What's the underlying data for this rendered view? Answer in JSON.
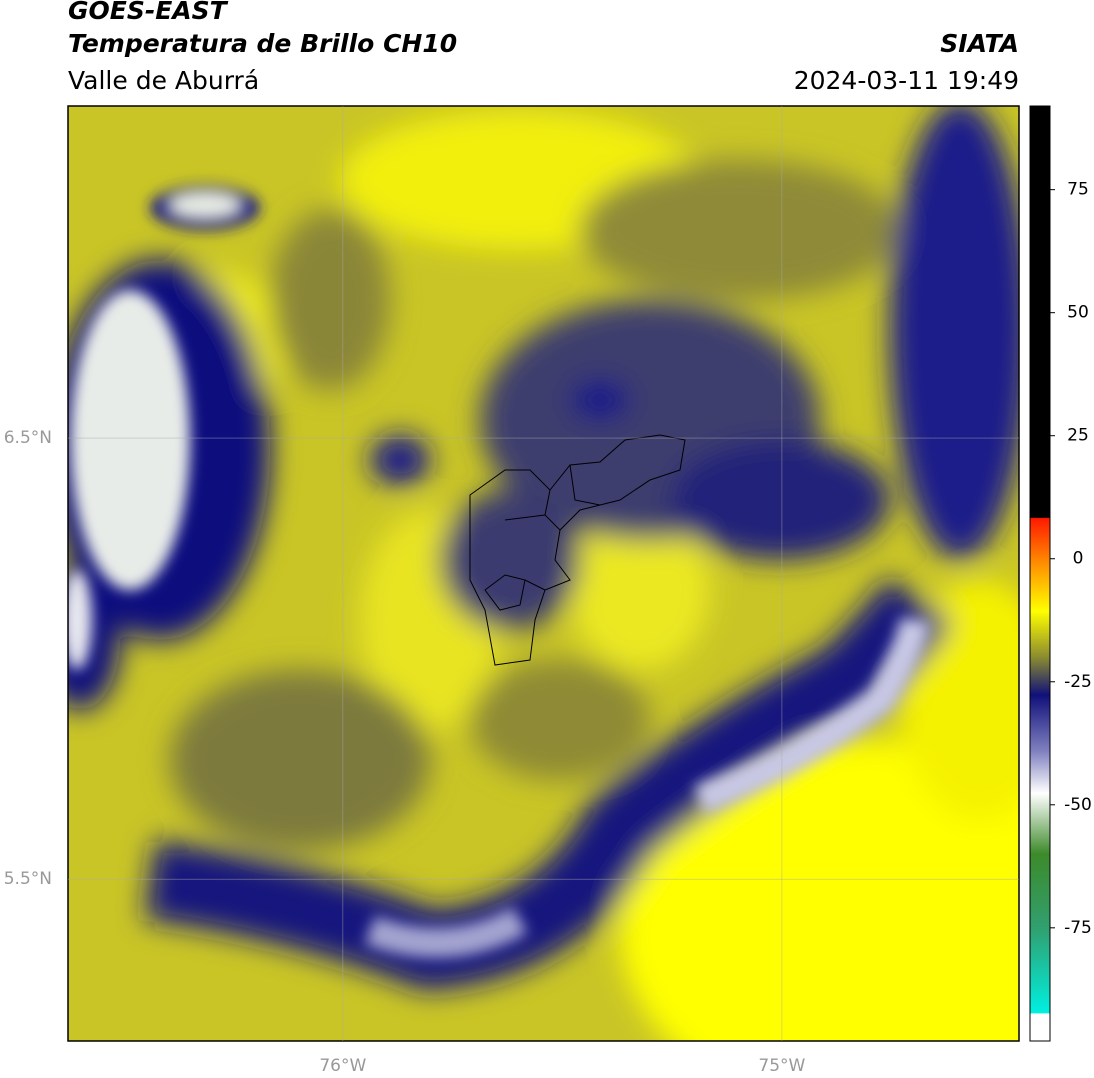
{
  "header": {
    "title": "GOES-EAST",
    "subtitle": "Temperatura de Brillo CH10",
    "region": "Valle de Aburrá",
    "source": "SIATA",
    "datetime": "2024-03-11 19:49"
  },
  "map": {
    "xlim": [
      -76.626,
      -74.46
    ],
    "ylim": [
      5.133,
      7.253
    ],
    "xticks": [
      {
        "value": -76,
        "label": "76°W"
      },
      {
        "value": -75,
        "label": "75°W"
      }
    ],
    "yticks": [
      {
        "value": 6.5,
        "label": "6.5°N"
      },
      {
        "value": 5.5,
        "label": "5.5°N"
      }
    ],
    "grid": true
  },
  "colorbar": {
    "lim": [
      -98,
      92
    ],
    "ticks": [
      75,
      50,
      25,
      0,
      -25,
      -50,
      -75
    ]
  }
}
